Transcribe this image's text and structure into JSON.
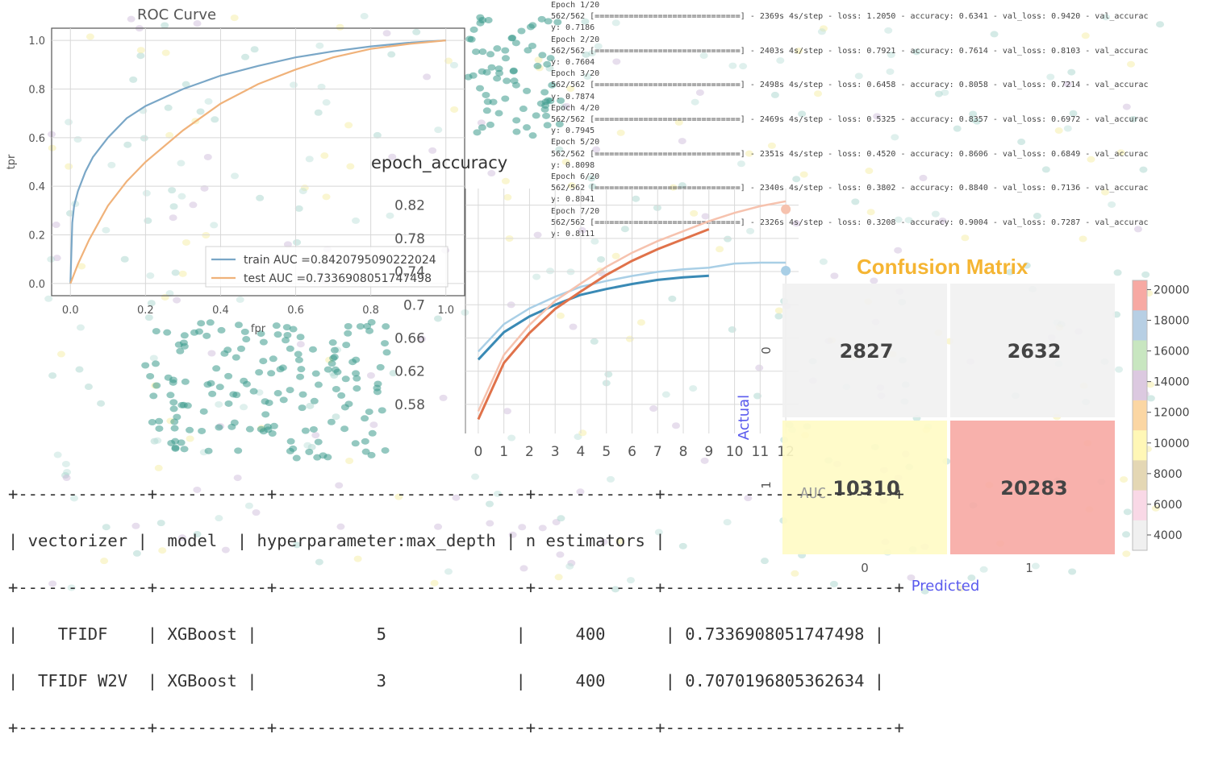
{
  "roc": {
    "title": "ROC Curve",
    "xlabel": "fpr",
    "ylabel": "tpr",
    "legend": {
      "train": "train AUC =0.8420795090222024",
      "test": "test AUC =0.7336908051747498"
    },
    "colors": {
      "train": "#7aa7c7",
      "test": "#f0b27a"
    }
  },
  "accuracy": {
    "title": "epoch_accuracy",
    "colors": {
      "train": "#3a8ab5",
      "val": "#e0724a",
      "train_light": "#a9cfe6",
      "val_light": "#f6c2ae"
    }
  },
  "confusion": {
    "title": "Confusion Matrix",
    "ylabel": "Actual",
    "xlabel": "Predicted",
    "row_ticks": [
      "0",
      "1"
    ],
    "col_ticks": [
      "0",
      "1"
    ],
    "cells": [
      [
        "2827",
        "2632"
      ],
      [
        "10310",
        "20283"
      ]
    ],
    "overlay_text": "AUC",
    "colorbar_ticks": [
      "20000",
      "18000",
      "16000",
      "14000",
      "12000",
      "10000",
      "8000",
      "6000",
      "4000"
    ],
    "colors": {
      "c00": "#f1f1f1",
      "c01": "#f1f1f1",
      "c10": "#fffbc4",
      "c11": "#f7a9a3",
      "title": "#f5b533",
      "label": "#5a5aee"
    }
  },
  "log_lines": [
    "Epoch 1/20",
    "562/562 [==============================] - 2369s 4s/step - loss: 1.2050 - accuracy: 0.6341 - val_loss: 0.9420 - val_accurac",
    "y: 0.7186",
    "Epoch 2/20",
    "562/562 [==============================] - 2403s 4s/step - loss: 0.7921 - accuracy: 0.7614 - val_loss: 0.8103 - val_accurac",
    "y: 0.7604",
    "Epoch 3/20",
    "562/562 [==============================] - 2498s 4s/step - loss: 0.6458 - accuracy: 0.8058 - val_loss: 0.7214 - val_accurac",
    "y: 0.7874",
    "Epoch 4/20",
    "562/562 [==============================] - 2469s 4s/step - loss: 0.5325 - accuracy: 0.8357 - val_loss: 0.6972 - val_accurac",
    "y: 0.7945",
    "Epoch 5/20",
    "562/562 [==============================] - 2351s 4s/step - loss: 0.4520 - accuracy: 0.8606 - val_loss: 0.6849 - val_accurac",
    "y: 0.8098",
    "Epoch 6/20",
    "562/562 [==============================] - 2340s 4s/step - loss: 0.3802 - accuracy: 0.8840 - val_loss: 0.7136 - val_accurac",
    "y: 0.8041",
    "Epoch 7/20",
    "562/562 [==============================] - 2326s 4s/step - loss: 0.3208 - accuracy: 0.9004 - val_loss: 0.7287 - val_accurac",
    "y: 0.8111"
  ],
  "table": {
    "border": "+-------------+-----------+-------------------------+------------+-----------------------+",
    "header": "| vectorizer |  model  | hyperparameter:max_depth | n estimators |",
    "rows": [
      "|    TFIDF    | XGBoost |            5             |     400      | 0.7336908051747498 |",
      "|  TFIDF W2V  | XGBoost |            3             |     400      | 0.7070196805362634 |"
    ]
  },
  "chart_data": [
    {
      "type": "line",
      "title": "ROC Curve",
      "xlabel": "fpr",
      "ylabel": "tpr",
      "xlim": [
        -0.05,
        1.05
      ],
      "ylim": [
        -0.05,
        1.05
      ],
      "x_ticks": [
        "0.0",
        "0.2",
        "0.4",
        "0.6",
        "0.8",
        "1.0"
      ],
      "y_ticks": [
        "0.0",
        "0.2",
        "0.4",
        "0.6",
        "0.8",
        "1.0"
      ],
      "legend_position": "bottom-right",
      "grid": true,
      "series": [
        {
          "name": "train AUC =0.8420795090222024",
          "x": [
            0,
            0.005,
            0.01,
            0.02,
            0.04,
            0.06,
            0.1,
            0.15,
            0.2,
            0.3,
            0.4,
            0.5,
            0.6,
            0.7,
            0.8,
            0.9,
            1.0
          ],
          "y": [
            0,
            0.25,
            0.32,
            0.38,
            0.46,
            0.52,
            0.6,
            0.68,
            0.73,
            0.8,
            0.855,
            0.895,
            0.93,
            0.955,
            0.975,
            0.99,
            1.0
          ]
        },
        {
          "name": "test AUC =0.7336908051747498",
          "x": [
            0,
            0.02,
            0.05,
            0.1,
            0.15,
            0.2,
            0.3,
            0.4,
            0.5,
            0.6,
            0.7,
            0.8,
            0.9,
            1.0
          ],
          "y": [
            0,
            0.08,
            0.18,
            0.32,
            0.42,
            0.5,
            0.63,
            0.74,
            0.82,
            0.88,
            0.93,
            0.965,
            0.985,
            1.0
          ]
        }
      ]
    },
    {
      "type": "line",
      "title": "epoch_accuracy",
      "xlim": [
        -0.5,
        12.5
      ],
      "ylim": [
        0.545,
        0.84
      ],
      "x_ticks": [
        "0",
        "1",
        "2",
        "3",
        "4",
        "5",
        "6",
        "7",
        "8",
        "9",
        "10",
        "11",
        "12"
      ],
      "y_ticks": [
        "0.58",
        "0.62",
        "0.66",
        "0.7",
        "0.74",
        "0.78",
        "0.82"
      ],
      "grid": true,
      "series": [
        {
          "x": [
            0,
            1,
            2,
            3,
            4,
            5,
            6,
            7,
            8,
            9,
            10,
            11,
            12
          ],
          "y": [
            0.634,
            0.667,
            0.686,
            0.7,
            0.712,
            0.719,
            0.725,
            0.73,
            0.733,
            0.735,
            0.74,
            0.741,
            0.741
          ]
        },
        {
          "x": [
            0,
            1,
            2,
            3,
            4,
            5,
            6,
            7,
            8,
            9,
            10,
            11,
            12
          ],
          "y": [
            0.562,
            0.63,
            0.666,
            0.695,
            0.716,
            0.736,
            0.753,
            0.767,
            0.779,
            0.791,
            0.801,
            0.809,
            0.815
          ]
        }
      ]
    },
    {
      "type": "heatmap",
      "title": "Confusion Matrix",
      "xlabel": "Predicted",
      "ylabel": "Actual",
      "rows": [
        "0",
        "1"
      ],
      "cols": [
        "0",
        "1"
      ],
      "values": [
        [
          2827,
          2632
        ],
        [
          10310,
          20283
        ]
      ],
      "colorbar_range": [
        2632,
        20283
      ]
    }
  ]
}
